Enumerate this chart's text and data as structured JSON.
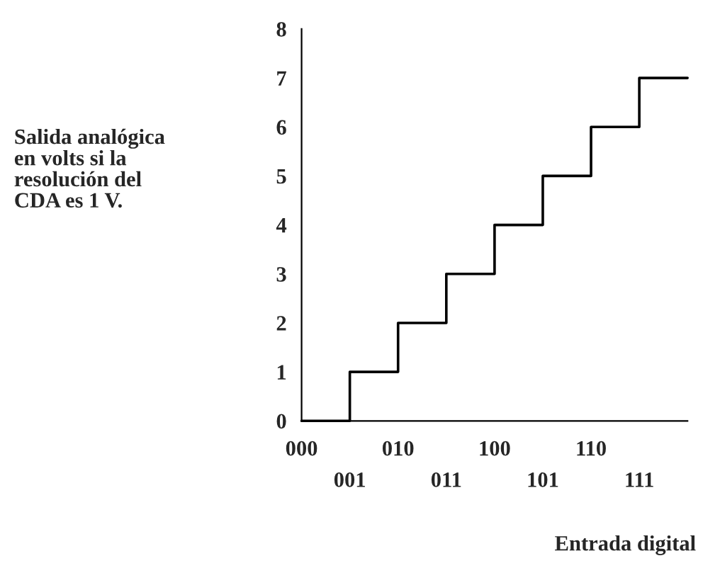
{
  "chart_data": {
    "type": "step",
    "xlabel": "Entrada digital",
    "annotations": [
      "Salida analógica\nen volts si la\nresolución del\nCDA es 1 V."
    ],
    "categories": [
      "000",
      "001",
      "010",
      "011",
      "100",
      "101",
      "110",
      "111",
      null
    ],
    "values": [
      0,
      1,
      2,
      3,
      4,
      5,
      6,
      7,
      7
    ],
    "color": "#000000",
    "ylim": [
      0,
      8
    ],
    "yticks": [
      0,
      1,
      2,
      3,
      4,
      5,
      6,
      7,
      8
    ],
    "grid": false,
    "legend": false
  }
}
